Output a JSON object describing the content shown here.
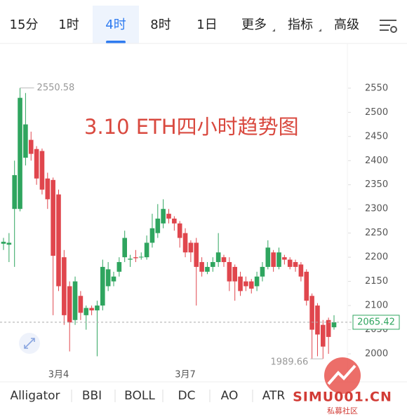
{
  "tabs": [
    "15分",
    "1时",
    "4时",
    "8时",
    "1日",
    "更多",
    "指标",
    "高级"
  ],
  "indicators": [
    "Alligator",
    "BBI",
    "BOLL",
    "DC",
    "AO",
    "ATR"
  ],
  "watermark": {
    "site": "SIMU001.CN",
    "name": "私募社区"
  },
  "chart_data": {
    "type": "candlestick",
    "title": "3.10 ETH四小时趋势图",
    "up_color": "#2fa55f",
    "down_color": "#e0464d",
    "title_color": "#d9493f",
    "categories": [
      null,
      null,
      null,
      null,
      null,
      null,
      null,
      null,
      null,
      null,
      "3月4",
      null,
      null,
      null,
      null,
      null,
      null,
      null,
      null,
      null,
      null,
      null,
      null,
      null,
      null,
      null,
      null,
      null,
      null,
      null,
      null,
      null,
      null,
      "3月7",
      null,
      null,
      null,
      null,
      null,
      null,
      null,
      null,
      null,
      null,
      null,
      null,
      null,
      null,
      null,
      null,
      null,
      null,
      null,
      null,
      null,
      null,
      null,
      null,
      null,
      null,
      null
    ],
    "open": [
      2228,
      2226,
      2300,
      2300,
      2406,
      2443,
      2424,
      2420,
      2363,
      2360,
      2330,
      2200,
      2140,
      2070,
      2120,
      2080,
      2095,
      2090,
      2100,
      2140,
      2150,
      2170,
      2200,
      2195,
      2200,
      2200,
      2200,
      2230,
      2250,
      2270,
      2290,
      2280,
      2270,
      2250,
      2230,
      2230,
      2190,
      2170,
      2180,
      2190,
      2200,
      2190,
      2180,
      2160,
      2150,
      2150,
      2140,
      2160,
      2180,
      2210,
      2180,
      2200,
      2195,
      2190,
      2185,
      2170,
      2120,
      2100,
      2060,
      2070,
      2055
    ],
    "high": [
      2240,
      2250,
      2400,
      2550.58,
      2540,
      2460,
      2430,
      2425,
      2375,
      2365,
      2340,
      2215,
      2150,
      2160,
      2130,
      2100,
      2100,
      2110,
      2195,
      2190,
      2170,
      2200,
      2255,
      2205,
      2215,
      2210,
      2245,
      2290,
      2310,
      2320,
      2300,
      2285,
      2275,
      2260,
      2235,
      2240,
      2200,
      2190,
      2200,
      2250,
      2205,
      2200,
      2185,
      2170,
      2160,
      2155,
      2170,
      2190,
      2235,
      2215,
      2220,
      2205,
      2200,
      2195,
      2190,
      2175,
      2125,
      2105,
      2070,
      2075,
      2080
    ],
    "low": [
      2215,
      2190,
      2180,
      2295,
      2390,
      2400,
      2350,
      2330,
      2300,
      2080,
      2130,
      2060,
      2005,
      2060,
      2070,
      2050,
      2080,
      1995,
      2090,
      2130,
      2140,
      2160,
      2190,
      2180,
      2190,
      2195,
      2195,
      2220,
      2240,
      2260,
      2270,
      2255,
      2220,
      2200,
      2190,
      2100,
      2160,
      2165,
      2170,
      2180,
      2180,
      2130,
      2110,
      2120,
      2130,
      2125,
      2130,
      2150,
      2175,
      2170,
      2175,
      2185,
      2175,
      2170,
      2150,
      2100,
      1990,
      1995,
      1989.66,
      2000,
      2050
    ],
    "close": [
      2232,
      2230,
      2370,
      2530,
      2475,
      2414,
      2363,
      2340,
      2320,
      2203,
      2140,
      2080,
      2065,
      2150,
      2085,
      2095,
      2090,
      2100,
      2180,
      2175,
      2160,
      2190,
      2240,
      2197,
      2198,
      2201,
      2230,
      2260,
      2280,
      2300,
      2280,
      2270,
      2240,
      2210,
      2210,
      2180,
      2170,
      2180,
      2190,
      2210,
      2190,
      2150,
      2150,
      2130,
      2140,
      2135,
      2160,
      2180,
      2220,
      2180,
      2210,
      2195,
      2180,
      2180,
      2160,
      2110,
      2050,
      2040,
      2015,
      2035,
      2065.42
    ],
    "ylim": [
      1980,
      2640
    ],
    "yticks": [
      2000,
      2050,
      2100,
      2150,
      2200,
      2250,
      2300,
      2350,
      2400,
      2450,
      2500,
      2550
    ],
    "max_index": 3,
    "min_index": 58
  }
}
